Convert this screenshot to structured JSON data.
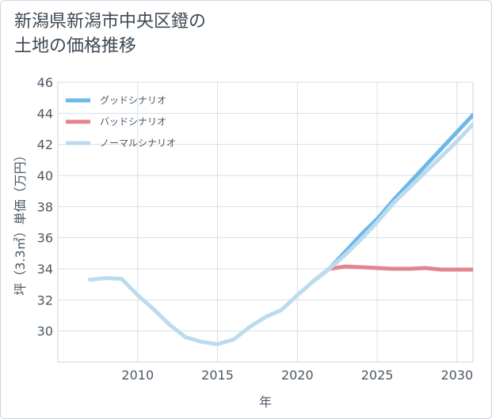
{
  "title_line1": "新潟県新潟市中央区鐙の",
  "title_line2": "土地の価格推移",
  "chart_data": {
    "type": "line",
    "title": "新潟県新潟市中央区鐙の土地の価格推移",
    "xlabel": "年",
    "ylabel": "坪（3.3㎡）単価（万円）",
    "xlim": [
      2005,
      2031
    ],
    "ylim": [
      28,
      46
    ],
    "xticks": [
      2010,
      2015,
      2020,
      2025,
      2030
    ],
    "yticks": [
      30,
      32,
      34,
      36,
      38,
      40,
      42,
      44,
      46
    ],
    "grid": true,
    "legend_position": "top-left",
    "series": [
      {
        "name": "グッドシナリオ",
        "color": "#6cb8e8",
        "x": [
          2021,
          2022,
          2023,
          2024,
          2025,
          2026,
          2027,
          2028,
          2029,
          2030,
          2031
        ],
        "values": [
          33.2,
          34.0,
          35.1,
          36.2,
          37.2,
          38.4,
          39.5,
          40.6,
          41.7,
          42.8,
          43.9
        ]
      },
      {
        "name": "バッドシナリオ",
        "color": "#e0868f",
        "x": [
          2021,
          2022,
          2023,
          2024,
          2025,
          2026,
          2027,
          2028,
          2029,
          2030,
          2031
        ],
        "values": [
          33.2,
          34.0,
          34.15,
          34.1,
          34.05,
          34.0,
          34.0,
          34.05,
          33.95,
          33.95,
          33.95
        ]
      },
      {
        "name": "ノーマルシナリオ",
        "color": "#bcdcee",
        "x": [
          2007,
          2008,
          2009,
          2010,
          2011,
          2012,
          2013,
          2014,
          2015,
          2016,
          2017,
          2018,
          2019,
          2020,
          2021,
          2022,
          2023,
          2024,
          2025,
          2026,
          2027,
          2028,
          2029,
          2030,
          2031
        ],
        "values": [
          33.3,
          33.4,
          33.35,
          32.3,
          31.4,
          30.4,
          29.6,
          29.3,
          29.15,
          29.45,
          30.25,
          30.9,
          31.35,
          32.3,
          33.2,
          34.0,
          34.9,
          35.9,
          37.0,
          38.2,
          39.2,
          40.2,
          41.2,
          42.2,
          43.3
        ]
      }
    ]
  }
}
